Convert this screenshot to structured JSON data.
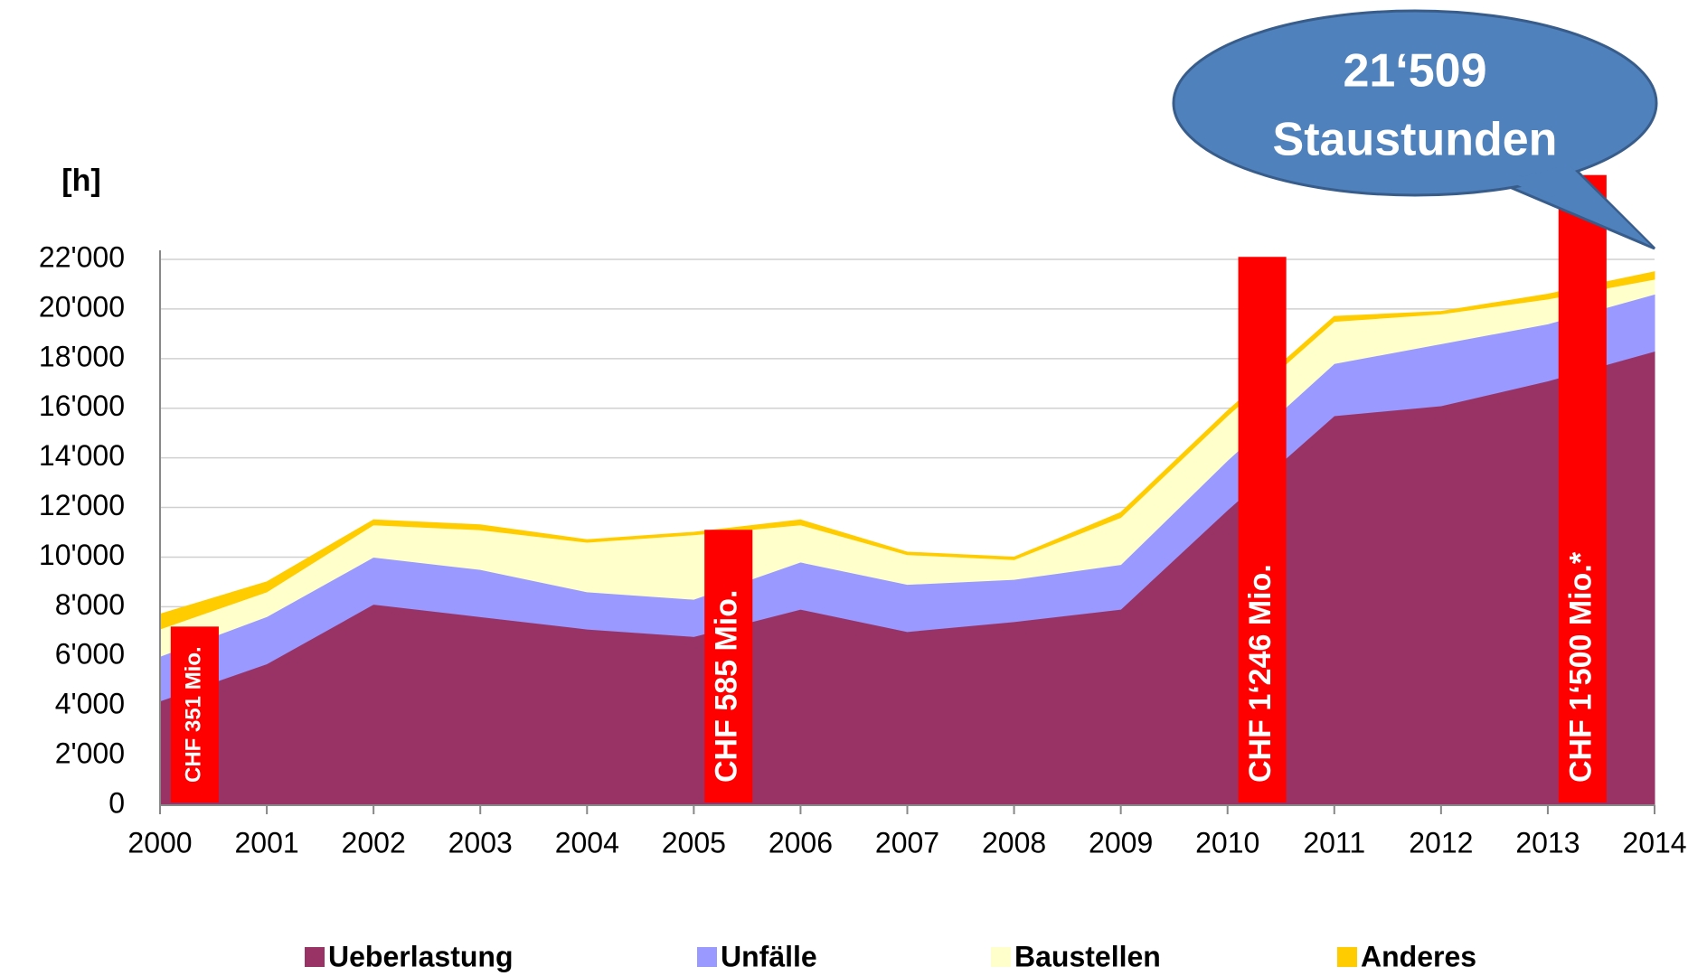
{
  "chart_data": {
    "type": "stacked_area",
    "y_label": "[h]",
    "x": [
      2000,
      2001,
      2002,
      2003,
      2004,
      2005,
      2006,
      2007,
      2008,
      2009,
      2010,
      2011,
      2012,
      2013,
      2014
    ],
    "xlim": [
      2000,
      2014
    ],
    "xticks": [
      2000,
      2001,
      2002,
      2003,
      2004,
      2005,
      2006,
      2007,
      2008,
      2009,
      2010,
      2011,
      2012,
      2013,
      2014
    ],
    "ylim": [
      0,
      22000
    ],
    "yticks": [
      0,
      {
        "value": 2000,
        "label": "2'000"
      },
      {
        "value": 4000,
        "label": "4'000"
      },
      {
        "value": 6000,
        "label": "6'000"
      },
      {
        "value": 8000,
        "label": "8'000"
      },
      {
        "value": 10000,
        "label": "10'000"
      },
      {
        "value": 12000,
        "label": "12'000"
      },
      {
        "value": 14000,
        "label": "14'000"
      },
      {
        "value": 16000,
        "label": "16'000"
      },
      {
        "value": 18000,
        "label": "18'000"
      },
      {
        "value": 20000,
        "label": "20'000"
      },
      {
        "value": 22000,
        "label": "22'000"
      }
    ],
    "grid": true,
    "series": [
      {
        "name": "Ueberlastung",
        "color": "#993366",
        "values": [
          4200,
          5700,
          8100,
          7600,
          7100,
          6800,
          7900,
          7000,
          7400,
          7900,
          11900,
          15700,
          16100,
          17100,
          18300
        ]
      },
      {
        "name": "Unfälle",
        "color": "#9999ff",
        "values": [
          1800,
          1900,
          1900,
          1900,
          1500,
          1500,
          1900,
          1900,
          1700,
          1800,
          2000,
          2100,
          2500,
          2300,
          2300
        ]
      },
      {
        "name": "Baustellen",
        "color": "#ffffcc",
        "values": [
          1100,
          1000,
          1300,
          1600,
          2000,
          2600,
          1500,
          1200,
          800,
          1900,
          1800,
          1700,
          1200,
          1000,
          600
        ]
      },
      {
        "name": "Anderes",
        "color": "#ffcc00",
        "values": [
          600,
          400,
          200,
          200,
          100,
          100,
          200,
          100,
          100,
          200,
          200,
          200,
          100,
          200,
          300
        ]
      }
    ],
    "cost_bars": {
      "color": "#ff0000",
      "bars": [
        {
          "x": 2000,
          "value": 7200,
          "label": "CHF 351 Mio."
        },
        {
          "x": 2005,
          "value": 11100,
          "label": "CHF 585 Mio."
        },
        {
          "x": 2010,
          "value": 22100,
          "label": "CHF 1‘246 Mio."
        },
        {
          "x": 2013,
          "value": 25400,
          "label": "CHF 1‘500 Mio.*"
        }
      ]
    },
    "callout": {
      "lines": [
        "21‘509",
        "Staustunden"
      ],
      "color": "#4f81bd"
    }
  }
}
